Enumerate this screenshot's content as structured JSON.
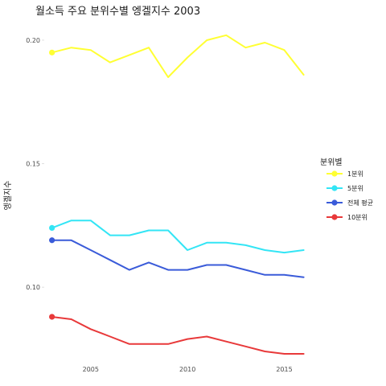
{
  "chart_data": {
    "type": "line",
    "title": "월소득 주요 분위수별 엥겔지수 2003",
    "xlabel": "",
    "ylabel": "엥겔지수",
    "x": [
      2003,
      2004,
      2005,
      2006,
      2007,
      2008,
      2009,
      2010,
      2011,
      2012,
      2013,
      2014,
      2015,
      2016
    ],
    "xlim": [
      2002.6,
      2016.1
    ],
    "ylim": [
      0.0665,
      0.2065
    ],
    "xticks": [
      2005,
      2010,
      2015
    ],
    "xtick_labels": [
      "2005",
      "2010",
      "2015"
    ],
    "yticks": [
      0.1,
      0.15,
      0.2
    ],
    "ytick_labels": [
      "0.10",
      "0.15",
      "0.20"
    ],
    "grid": false,
    "legend": {
      "title": "분위별",
      "position": "right"
    },
    "series": [
      {
        "name": "1분위",
        "color": "#ffff33",
        "values": [
          0.195,
          0.197,
          0.196,
          0.191,
          0.194,
          0.197,
          0.185,
          0.193,
          0.2,
          0.202,
          0.197,
          0.199,
          0.196,
          0.186
        ]
      },
      {
        "name": "5분위",
        "color": "#33e5f5",
        "values": [
          0.124,
          0.127,
          0.127,
          0.121,
          0.121,
          0.123,
          0.123,
          0.115,
          0.118,
          0.118,
          0.117,
          0.115,
          0.114,
          0.115
        ]
      },
      {
        "name": "전체 평균",
        "color": "#3a5bd9",
        "values": [
          0.119,
          0.119,
          0.115,
          0.111,
          0.107,
          0.11,
          0.107,
          0.107,
          0.109,
          0.109,
          0.107,
          0.105,
          0.105,
          0.104
        ]
      },
      {
        "name": "10분위",
        "color": "#e8393a",
        "values": [
          0.088,
          0.087,
          0.083,
          0.08,
          0.077,
          0.077,
          0.077,
          0.079,
          0.08,
          0.078,
          0.076,
          0.074,
          0.073,
          0.073
        ]
      }
    ]
  }
}
